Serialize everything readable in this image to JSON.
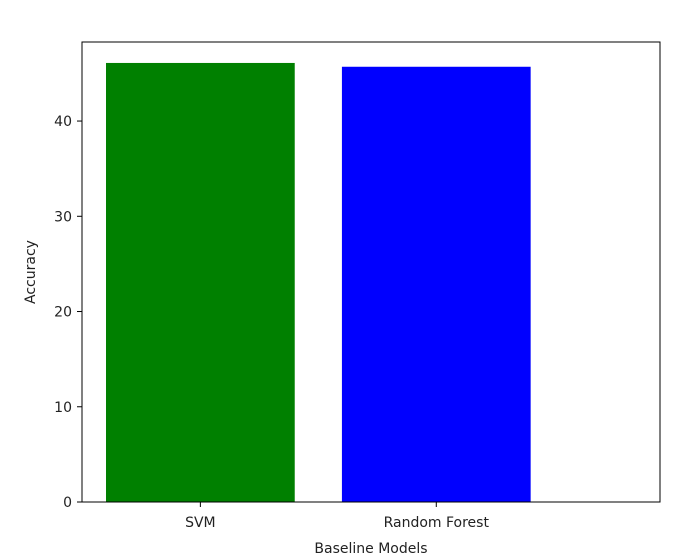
{
  "chart_data": {
    "type": "bar",
    "categories": [
      "SVM",
      "Random Forest"
    ],
    "values": [
      46.1,
      45.7
    ],
    "colors": [
      "#008000",
      "#0000ff"
    ],
    "xlabel": "Baseline Models",
    "ylabel": "Accuracy",
    "ylim": [
      0,
      48.3
    ],
    "yticks": [
      0,
      10,
      20,
      30,
      40
    ],
    "grid": false
  }
}
